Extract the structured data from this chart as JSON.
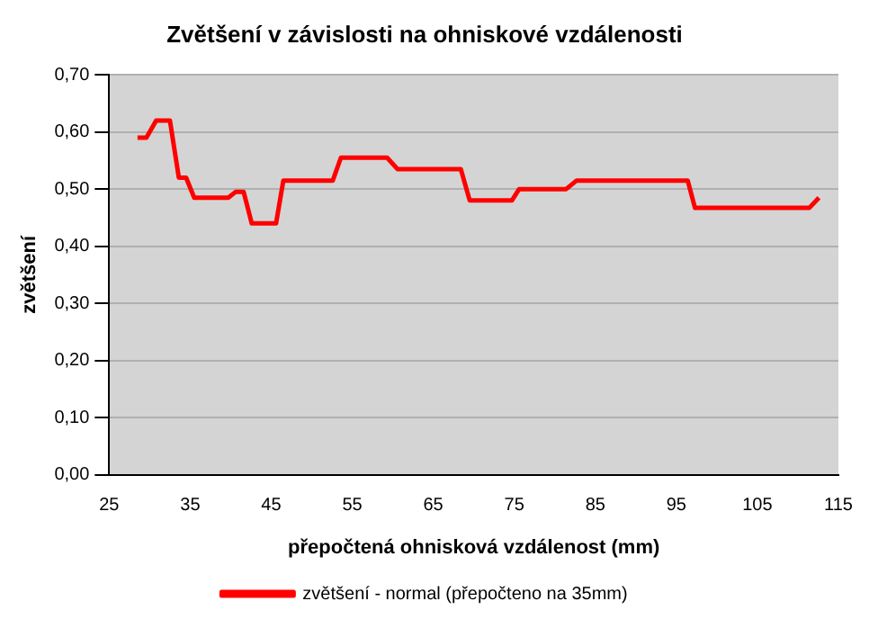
{
  "chart_data": {
    "type": "line",
    "title": "Zvětšení v závislosti na ohniskové vzdálenosti",
    "xlabel": "přepočtená ohnisková vzdálenost (mm)",
    "ylabel": "zvětšení",
    "xlim": [
      25,
      115
    ],
    "xticks": [
      25,
      35,
      45,
      55,
      65,
      75,
      85,
      95,
      105,
      115
    ],
    "ylim": [
      0,
      0.7
    ],
    "yticks": [
      {
        "value": 0,
        "label": "0,00"
      },
      {
        "value": 0.1,
        "label": "0,10"
      },
      {
        "value": 0.2,
        "label": "0,20"
      },
      {
        "value": 0.3,
        "label": "0,30"
      },
      {
        "value": 0.4,
        "label": "0,40"
      },
      {
        "value": 0.5,
        "label": "0,50"
      },
      {
        "value": 0.6,
        "label": "0,60"
      },
      {
        "value": 0.7,
        "label": "0,70"
      }
    ],
    "grid": "y",
    "legend": "bottom",
    "marker": "none",
    "line_style": "solid",
    "series": [
      {
        "name": "zvětšení - normal (přepočteno na 35mm)",
        "color": "#ff0000",
        "x": [
          28.5,
          29.6,
          30.8,
          32.5,
          33.6,
          34.5,
          35.5,
          39.7,
          40.6,
          41.6,
          42.6,
          45.6,
          46.5,
          52.6,
          53.6,
          59.3,
          60.6,
          68.4,
          69.5,
          74.7,
          75.6,
          81.4,
          82.7,
          96.4,
          97.3,
          111.4,
          112.6
        ],
        "values": [
          0.59,
          0.59,
          0.62,
          0.62,
          0.52,
          0.52,
          0.485,
          0.485,
          0.495,
          0.495,
          0.44,
          0.44,
          0.515,
          0.515,
          0.555,
          0.555,
          0.535,
          0.535,
          0.48,
          0.48,
          0.5,
          0.5,
          0.515,
          0.515,
          0.467,
          0.467,
          0.485
        ]
      }
    ]
  }
}
